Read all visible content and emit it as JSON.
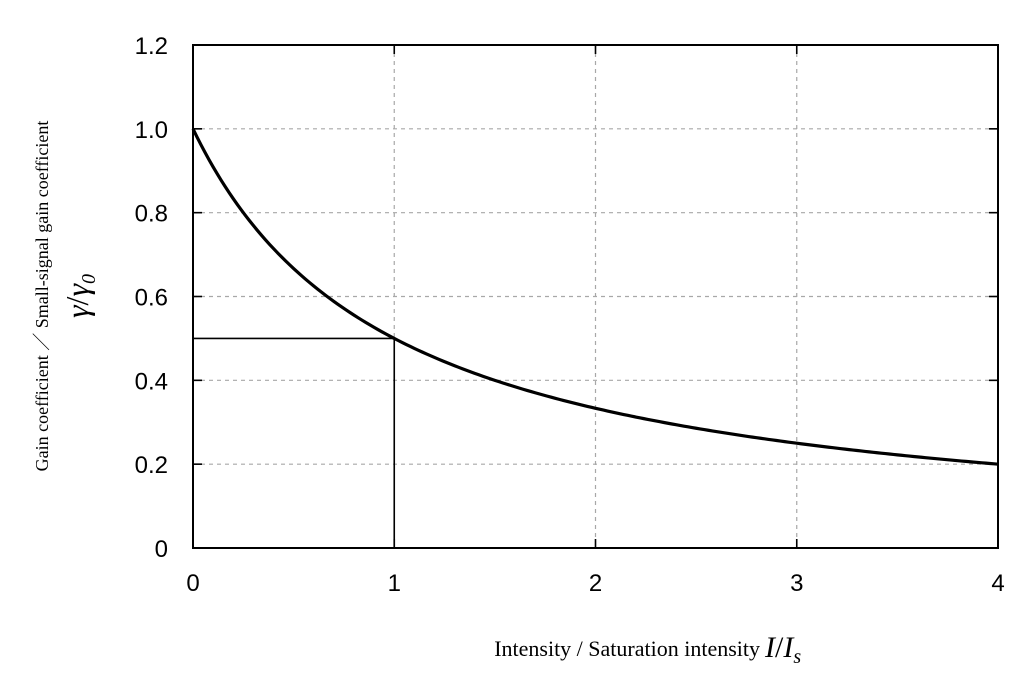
{
  "chart_data": {
    "type": "line",
    "function": "gamma/gamma0 = 1 / (1 + I/Is)",
    "x": [
      0,
      0.25,
      0.5,
      0.75,
      1,
      1.5,
      2,
      2.5,
      3,
      3.5,
      4
    ],
    "y": [
      1.0,
      0.8,
      0.667,
      0.571,
      0.5,
      0.4,
      0.333,
      0.286,
      0.25,
      0.222,
      0.2
    ],
    "xlim": [
      0,
      4
    ],
    "ylim": [
      0,
      1.2
    ],
    "xticks": [
      0,
      1,
      2,
      3,
      4
    ],
    "xtick_labels": [
      "0",
      "1",
      "2",
      "3",
      "4"
    ],
    "yticks": [
      0,
      0.2,
      0.4,
      0.6,
      0.8,
      1.0,
      1.2
    ],
    "ytick_labels": [
      "0",
      "0.2",
      "0.4",
      "0.6",
      "0.8",
      "1.0",
      "1.2"
    ],
    "grid": true,
    "xlabel": "Intensity / Saturation intensity",
    "xlabel_symbol": {
      "num": "I",
      "den": "I",
      "den_sub": "s"
    },
    "ylabel": "Gain coefficient ／ Small-signal gain coefficient",
    "ylabel_symbol": {
      "num": "γ",
      "den": "γ",
      "den_sub": "0"
    },
    "marker_point": {
      "x": 1,
      "y": 0.5
    }
  }
}
